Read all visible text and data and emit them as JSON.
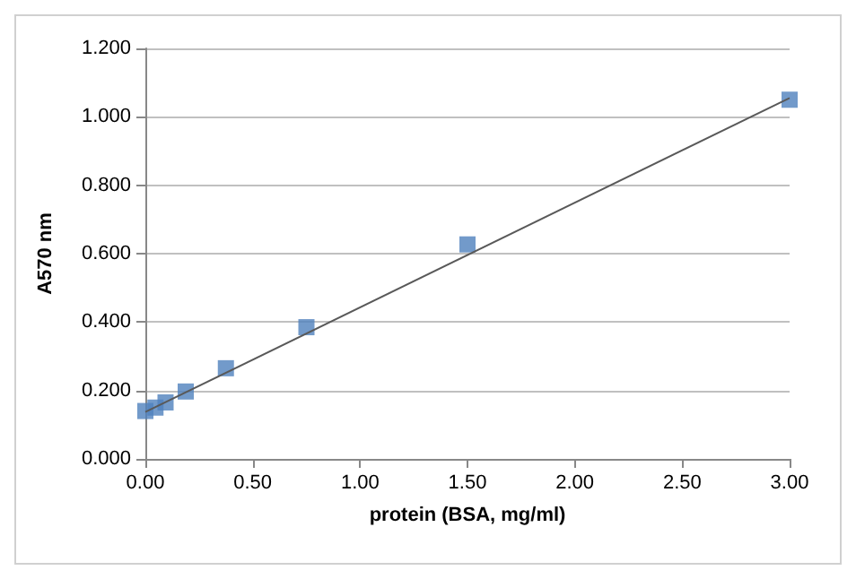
{
  "chart_data": {
    "type": "scatter",
    "xlabel": "protein (BSA, mg/ml)",
    "ylabel": "A570 nm",
    "grid": "y",
    "xlim": [
      0,
      3
    ],
    "xticks": [
      {
        "value": 0,
        "label": "0.00"
      },
      {
        "value": 0.5,
        "label": "0.50"
      },
      {
        "value": 1,
        "label": "1.00"
      },
      {
        "value": 1.5,
        "label": "1.50"
      },
      {
        "value": 2,
        "label": "2.00"
      },
      {
        "value": 2.5,
        "label": "2.50"
      },
      {
        "value": 3,
        "label": "3.00"
      }
    ],
    "ylim": [
      0,
      1.2
    ],
    "yticks": [
      {
        "value": 0,
        "label": "0.000"
      },
      {
        "value": 0.2,
        "label": "0.200"
      },
      {
        "value": 0.4,
        "label": "0.400"
      },
      {
        "value": 0.6,
        "label": "0.600"
      },
      {
        "value": 0.8,
        "label": "0.800"
      },
      {
        "value": 1,
        "label": "1.000"
      },
      {
        "value": 1.2,
        "label": "1.200"
      }
    ],
    "series": [
      {
        "marker": "square",
        "color": "#4f81bd",
        "x": [
          0,
          0.047,
          0.094,
          0.188,
          0.375,
          0.75,
          1.5,
          3
        ],
        "values": [
          0.14,
          0.15,
          0.165,
          0.197,
          0.265,
          0.385,
          0.627,
          1.05
        ]
      },
      {
        "type": "line",
        "marker": "none",
        "color": "#595959",
        "x": [
          0,
          3
        ],
        "values": [
          0.137,
          1.055
        ]
      }
    ]
  }
}
